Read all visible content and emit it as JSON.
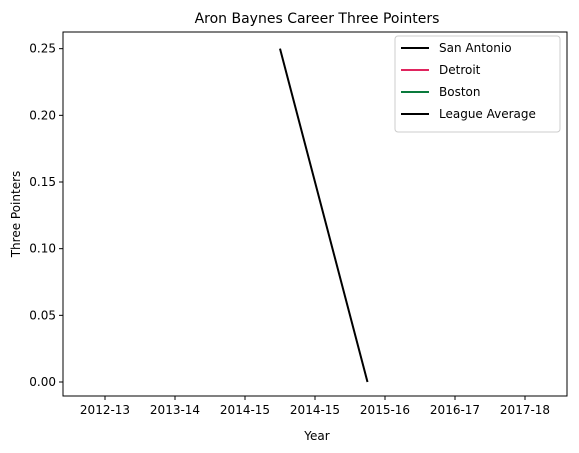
{
  "chart_data": {
    "type": "line",
    "title": "Aron Baynes Career Three Pointers",
    "xlabel": "Year",
    "ylabel": "Three Pointers",
    "x_tick_labels": [
      "2012-13",
      "2013-14",
      "2014-15",
      "2014-15",
      "2015-16",
      "2016-17",
      "2017-18"
    ],
    "y_tick_labels": [
      "0.00",
      "0.05",
      "0.10",
      "0.15",
      "0.20",
      "0.25"
    ],
    "y_ticks": [
      0,
      0.05,
      0.1,
      0.15,
      0.2,
      0.25
    ],
    "x_ticks": [
      0,
      1,
      2,
      3,
      4,
      5,
      6
    ],
    "xlim": [
      -0.6,
      6.6
    ],
    "ylim": [
      -0.0105,
      0.2625
    ],
    "legend_position": "upper right",
    "grid": false,
    "series": [
      {
        "name": "San Antonio",
        "color": "#000000",
        "points": []
      },
      {
        "name": "Detroit",
        "color": "#e0245e",
        "points": []
      },
      {
        "name": "Boston",
        "color": "#0a7a3c",
        "points": []
      },
      {
        "name": "League Average",
        "color": "#000000",
        "points": [
          [
            2.5,
            0.25
          ],
          [
            3.75,
            0.0
          ]
        ]
      }
    ]
  }
}
